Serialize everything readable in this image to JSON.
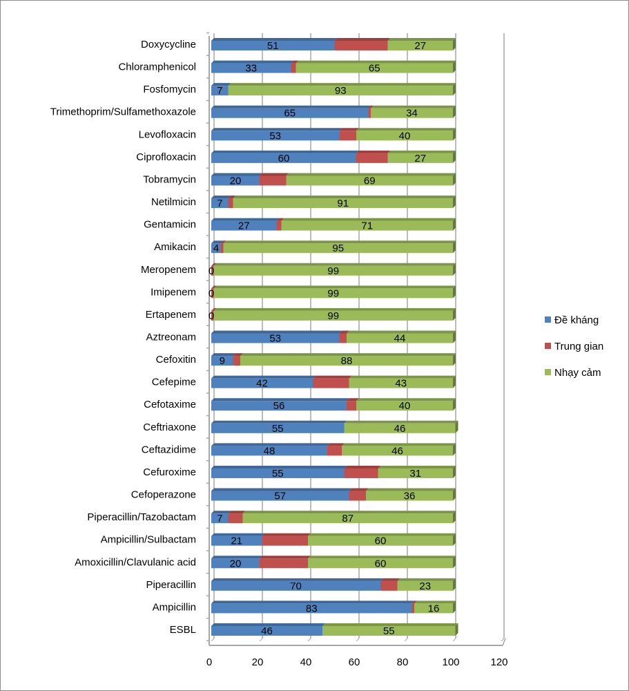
{
  "chart_data": {
    "type": "bar",
    "orientation": "horizontal",
    "stacked": true,
    "style": "3d",
    "title": "",
    "xlabel": "",
    "ylabel": "",
    "xlim": [
      0,
      120
    ],
    "xticks": [
      0,
      20,
      40,
      60,
      80,
      100,
      120
    ],
    "grid": true,
    "legend_position": "right",
    "categories": [
      "Doxycycline",
      "Chloramphenicol",
      "Fosfomycin",
      "Trimethoprim/Sulfamethoxazole",
      "Levofloxacin",
      "Ciprofloxacin",
      "Tobramycin",
      "Netilmicin",
      "Gentamicin",
      "Amikacin",
      "Meropenem",
      "Imipenem",
      "Ertapenem",
      "Aztreonam",
      "Cefoxitin",
      "Cefepime",
      "Cefotaxime",
      "Ceftriaxone",
      "Ceftazidime",
      "Cefuroxime",
      "Cefoperazone",
      "Piperacillin/Tazobactam",
      "Ampicillin/Sulbactam",
      "Amoxicillin/Clavulanic acid",
      "Piperacillin",
      "Ampicillin",
      "ESBL"
    ],
    "series": [
      {
        "name": "Đề kháng",
        "color": "#4f81bd",
        "show_labels": true,
        "values": [
          51,
          33,
          7,
          65,
          53,
          60,
          20,
          7,
          27,
          4,
          0,
          0,
          0,
          53,
          9,
          42,
          56,
          55,
          48,
          55,
          57,
          7,
          21,
          20,
          70,
          83,
          46
        ]
      },
      {
        "name": "Trung gian",
        "color": "#c0504d",
        "show_labels": false,
        "values": [
          22,
          2,
          0,
          1,
          7,
          13,
          11,
          2,
          2,
          1,
          1,
          1,
          1,
          3,
          3,
          15,
          4,
          0,
          6,
          14,
          7,
          6,
          19,
          20,
          7,
          1,
          0
        ]
      },
      {
        "name": "Nhạy cảm",
        "color": "#9bbb59",
        "show_labels": true,
        "values": [
          27,
          65,
          93,
          34,
          40,
          27,
          69,
          91,
          71,
          95,
          99,
          99,
          99,
          44,
          88,
          43,
          40,
          46,
          46,
          31,
          36,
          87,
          60,
          60,
          23,
          16,
          55
        ]
      }
    ]
  }
}
